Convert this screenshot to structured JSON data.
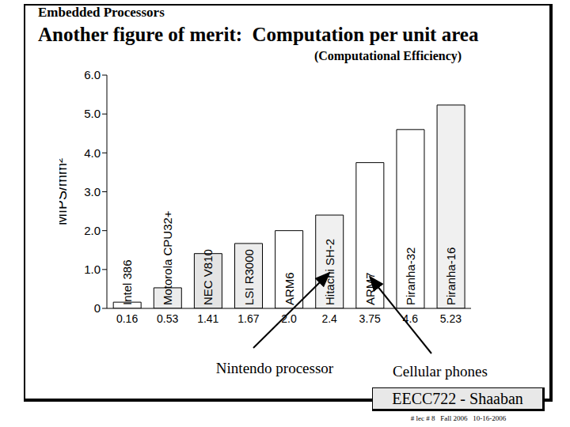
{
  "chart_data": {
    "type": "bar",
    "header": "Embedded Processors",
    "title": "Another figure of merit:  Computation per unit area",
    "subtitle": "(Computational Efficiency)",
    "y_label": "MIPS/mm²",
    "categories": [
      "Intel 386",
      "Motorola CPU32+",
      "NEC V810",
      "LSI R3000",
      "ARM6",
      "Hitachi SH-2",
      "ARM7",
      "Piranha-32",
      "Piranha-16"
    ],
    "values": [
      0.16,
      0.53,
      1.41,
      1.67,
      2.0,
      2.4,
      3.75,
      4.6,
      5.23
    ],
    "value_labels": [
      "0.16",
      "0.53",
      "1.41",
      "1.67",
      "2.0",
      "2.4",
      "3.75",
      "4.6",
      "5.23"
    ],
    "data_labels": true,
    "colors": [
      "#ffffff",
      "#ececec",
      "#e4e4e4",
      "#ececec",
      "#ffffff",
      "#f0f0f0",
      "#ffffff",
      "#ffffff",
      "#f0f0f0"
    ],
    "ylim": [
      0,
      6
    ],
    "yticks": [
      0,
      {
        "value": 1,
        "label": "1.0"
      },
      {
        "value": 2,
        "label": "2.0"
      },
      {
        "value": 3,
        "label": "3.0"
      },
      {
        "value": 4,
        "label": "4.0"
      },
      {
        "value": 5,
        "label": "5.0"
      },
      {
        "value": 6,
        "label": "6.0"
      }
    ],
    "grid": false,
    "annotations": [
      {
        "text": "Nintendo processor",
        "category": "Hitachi SH-2"
      },
      {
        "text": "Cellular phones",
        "category": "ARM7"
      }
    ],
    "footer": {
      "course": "EECC722 - Shaaban",
      "info": "# lec # 8   Fall 2006   10-16-2006"
    }
  }
}
